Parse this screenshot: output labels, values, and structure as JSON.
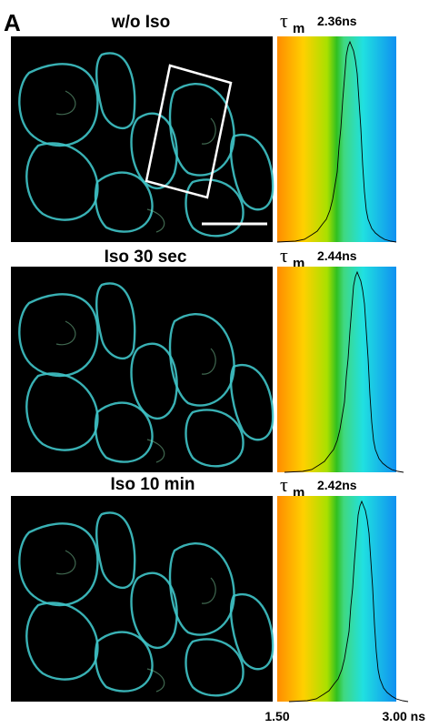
{
  "panel_label": "A",
  "rows": [
    {
      "title": "w/o Iso",
      "tau": "τ",
      "tau_sub": "m",
      "tau_value": "2.36ns"
    },
    {
      "title": "Iso 30 sec",
      "tau": "τ",
      "tau_sub": "m",
      "tau_value": "2.44ns"
    },
    {
      "title": "Iso 10 min",
      "tau": "τ",
      "tau_sub": "m",
      "tau_value": "2.42ns"
    }
  ],
  "axis": {
    "min_label": "1.50",
    "max_label": "3.00 ns"
  }
}
